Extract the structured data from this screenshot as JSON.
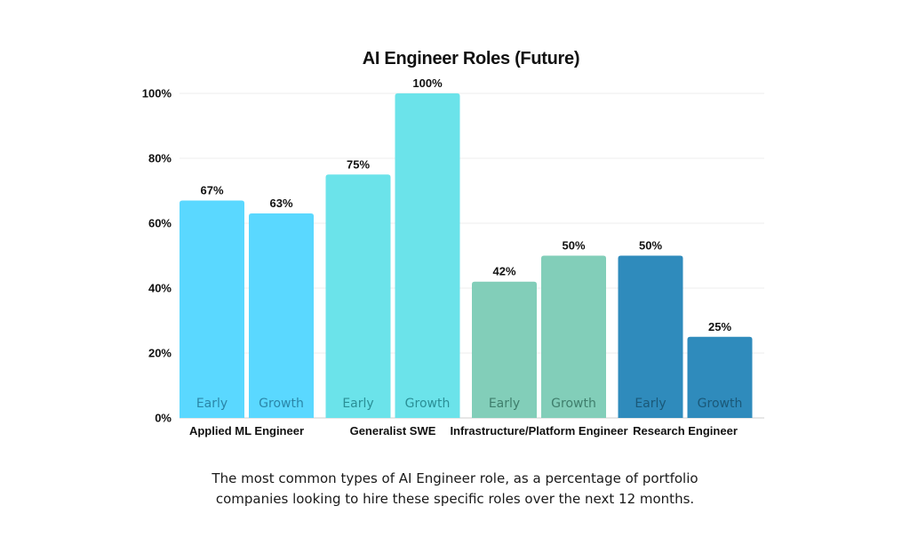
{
  "chart_data": {
    "type": "bar",
    "title": "AI Engineer Roles (Future)",
    "xlabel": "",
    "ylabel": "",
    "ylim": [
      0,
      100
    ],
    "yticks": [
      "0%",
      "20%",
      "40%",
      "60%",
      "80%",
      "100%"
    ],
    "grid": true,
    "categories": [
      "Applied ML Engineer",
      "Generalist SWE",
      "Infrastructure/Platform Engineer",
      "Research Engineer"
    ],
    "series": [
      {
        "name": "Early",
        "values": [
          67,
          75,
          42,
          50
        ]
      },
      {
        "name": "Growth",
        "values": [
          63,
          100,
          50,
          25
        ]
      }
    ],
    "value_labels": [
      [
        "67%",
        "63%"
      ],
      [
        "75%",
        "100%"
      ],
      [
        "42%",
        "50%"
      ],
      [
        "50%",
        "25%"
      ]
    ],
    "category_colors": [
      "#5ad8ff",
      "#6be3ea",
      "#82ceb9",
      "#2f8bbc"
    ],
    "inbar_label_colors": [
      "#2a86a8",
      "#2a8f96",
      "#3f7e6c",
      "#1a5878"
    ]
  },
  "caption": {
    "line1": "The most common types of AI Engineer role, as a percentage of portfolio",
    "line2": "companies looking to hire these specific roles over the next 12 months."
  }
}
